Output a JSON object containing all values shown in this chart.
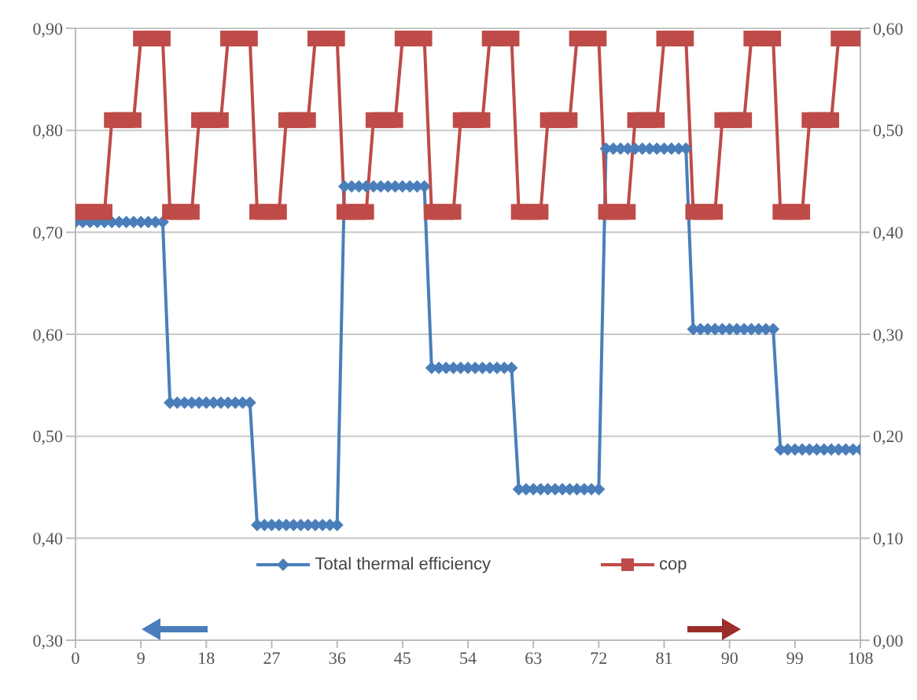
{
  "chart_data": {
    "type": "line",
    "x": [
      0,
      1,
      2,
      3,
      4,
      5,
      6,
      7,
      8,
      9,
      10,
      11,
      12,
      13,
      14,
      15,
      16,
      17,
      18,
      19,
      20,
      21,
      22,
      23,
      24,
      25,
      26,
      27,
      28,
      29,
      30,
      31,
      32,
      33,
      34,
      35,
      36,
      37,
      38,
      39,
      40,
      41,
      42,
      43,
      44,
      45,
      46,
      47,
      48,
      49,
      50,
      51,
      52,
      53,
      54,
      55,
      56,
      57,
      58,
      59,
      60,
      61,
      62,
      63,
      64,
      65,
      66,
      67,
      68,
      69,
      70,
      71,
      72,
      73,
      74,
      75,
      76,
      77,
      78,
      79,
      80,
      81,
      82,
      83,
      84,
      85,
      86,
      87,
      88,
      89,
      90,
      91,
      92,
      93,
      94,
      95,
      96,
      97,
      98,
      99,
      100,
      101,
      102,
      103,
      104,
      105,
      106,
      107,
      108
    ],
    "series": [
      {
        "name": "Total thermal efficiency",
        "color": "#4a7ebb",
        "marker": "diamond",
        "values": [
          0.71,
          0.71,
          0.71,
          0.71,
          0.71,
          0.71,
          0.71,
          0.71,
          0.71,
          0.71,
          0.71,
          0.71,
          0.71,
          0.533,
          0.533,
          0.533,
          0.533,
          0.533,
          0.533,
          0.533,
          0.533,
          0.533,
          0.533,
          0.533,
          0.533,
          0.413,
          0.413,
          0.413,
          0.413,
          0.413,
          0.413,
          0.413,
          0.413,
          0.413,
          0.413,
          0.413,
          0.413,
          0.745,
          0.745,
          0.745,
          0.745,
          0.745,
          0.745,
          0.745,
          0.745,
          0.745,
          0.745,
          0.745,
          0.745,
          0.567,
          0.567,
          0.567,
          0.567,
          0.567,
          0.567,
          0.567,
          0.567,
          0.567,
          0.567,
          0.567,
          0.567,
          0.448,
          0.448,
          0.448,
          0.448,
          0.448,
          0.448,
          0.448,
          0.448,
          0.448,
          0.448,
          0.448,
          0.448,
          0.782,
          0.782,
          0.782,
          0.782,
          0.782,
          0.782,
          0.782,
          0.782,
          0.782,
          0.782,
          0.782,
          0.782,
          0.605,
          0.605,
          0.605,
          0.605,
          0.605,
          0.605,
          0.605,
          0.605,
          0.605,
          0.605,
          0.605,
          0.605,
          0.487,
          0.487,
          0.487,
          0.487,
          0.487,
          0.487,
          0.487,
          0.487,
          0.487,
          0.487,
          0.487,
          0.487
        ]
      },
      {
        "name": "cop",
        "color": "#be4b48",
        "marker": "square",
        "axis": "y2",
        "values": [
          0.42,
          0.42,
          0.42,
          0.42,
          0.42,
          0.51,
          0.51,
          0.51,
          0.51,
          0.59,
          0.59,
          0.59,
          0.59,
          0.42,
          0.42,
          0.42,
          0.42,
          0.51,
          0.51,
          0.51,
          0.51,
          0.59,
          0.59,
          0.59,
          0.59,
          0.42,
          0.42,
          0.42,
          0.42,
          0.51,
          0.51,
          0.51,
          0.51,
          0.59,
          0.59,
          0.59,
          0.59,
          0.42,
          0.42,
          0.42,
          0.42,
          0.51,
          0.51,
          0.51,
          0.51,
          0.59,
          0.59,
          0.59,
          0.59,
          0.42,
          0.42,
          0.42,
          0.42,
          0.51,
          0.51,
          0.51,
          0.51,
          0.59,
          0.59,
          0.59,
          0.59,
          0.42,
          0.42,
          0.42,
          0.42,
          0.51,
          0.51,
          0.51,
          0.51,
          0.59,
          0.59,
          0.59,
          0.59,
          0.42,
          0.42,
          0.42,
          0.42,
          0.51,
          0.51,
          0.51,
          0.51,
          0.59,
          0.59,
          0.59,
          0.59,
          0.42,
          0.42,
          0.42,
          0.42,
          0.51,
          0.51,
          0.51,
          0.51,
          0.59,
          0.59,
          0.59,
          0.59,
          0.42,
          0.42,
          0.42,
          0.42,
          0.51,
          0.51,
          0.51,
          0.51,
          0.59,
          0.59,
          0.59,
          0.59
        ]
      }
    ],
    "xlim": [
      0,
      108
    ],
    "xticks": [
      0,
      9,
      18,
      27,
      36,
      45,
      54,
      63,
      72,
      81,
      90,
      99,
      108
    ],
    "ylim": [
      0.3,
      0.9
    ],
    "yticks": [
      {
        "value": 0.3,
        "label": "0,30"
      },
      {
        "value": 0.4,
        "label": "0,40"
      },
      {
        "value": 0.5,
        "label": "0,50"
      },
      {
        "value": 0.6,
        "label": "0,60"
      },
      {
        "value": 0.7,
        "label": "0,70"
      },
      {
        "value": 0.8,
        "label": "0,80"
      },
      {
        "value": 0.9,
        "label": "0,90"
      }
    ],
    "y2lim": [
      0,
      0.6
    ],
    "y2ticks": [
      {
        "value": 0,
        "label": "0,00"
      },
      {
        "value": 0.1,
        "label": "0,10"
      },
      {
        "value": 0.2,
        "label": "0,20"
      },
      {
        "value": 0.3,
        "label": "0,30"
      },
      {
        "value": 0.4,
        "label": "0,40"
      },
      {
        "value": 0.5,
        "label": "0,50"
      },
      {
        "value": 0.6,
        "label": "0,60"
      }
    ],
    "grid": "y",
    "legend": "bottom",
    "line_style": "solid"
  }
}
